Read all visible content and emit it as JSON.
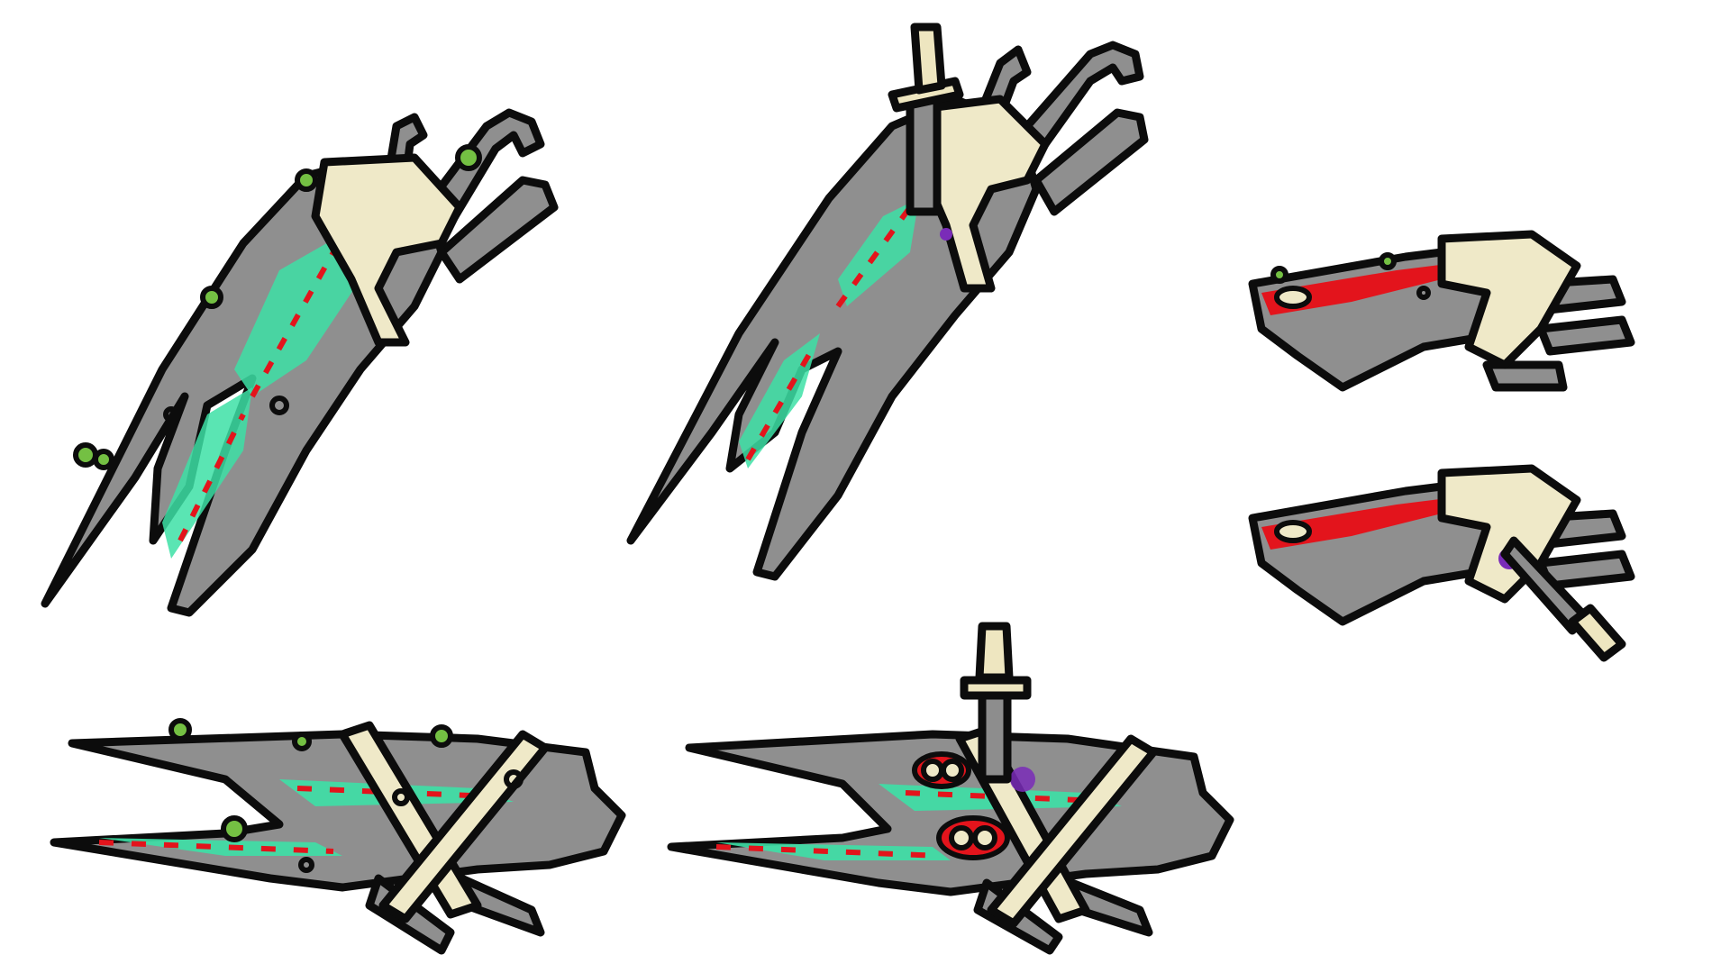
{
  "colors": {
    "background": "#ffffff",
    "shell": "#8f8f8f",
    "shell_dark": "#6e6e6e",
    "outline": "#0c0c0c",
    "glow": "#3de0a6",
    "wound": "#e3141c",
    "fungus": "#74c043",
    "bandage": "#efe9c8",
    "dagger_blade": "#8d8d8d",
    "dagger_hilt": "#eee6c0",
    "bruise": "#7a2cb8"
  },
  "sprites": [
    {
      "id": "claw-top-left",
      "view": "diagonal",
      "variant": "fungus"
    },
    {
      "id": "claw-top-middle",
      "view": "diagonal",
      "variant": "stabbed"
    },
    {
      "id": "claw-side-right-top",
      "view": "side",
      "variant": "fungus"
    },
    {
      "id": "claw-side-right-bottom",
      "view": "side",
      "variant": "stabbed"
    },
    {
      "id": "claw-bottom-left",
      "view": "flat",
      "variant": "fungus"
    },
    {
      "id": "claw-bottom-middle",
      "view": "flat",
      "variant": "stabbed"
    }
  ]
}
